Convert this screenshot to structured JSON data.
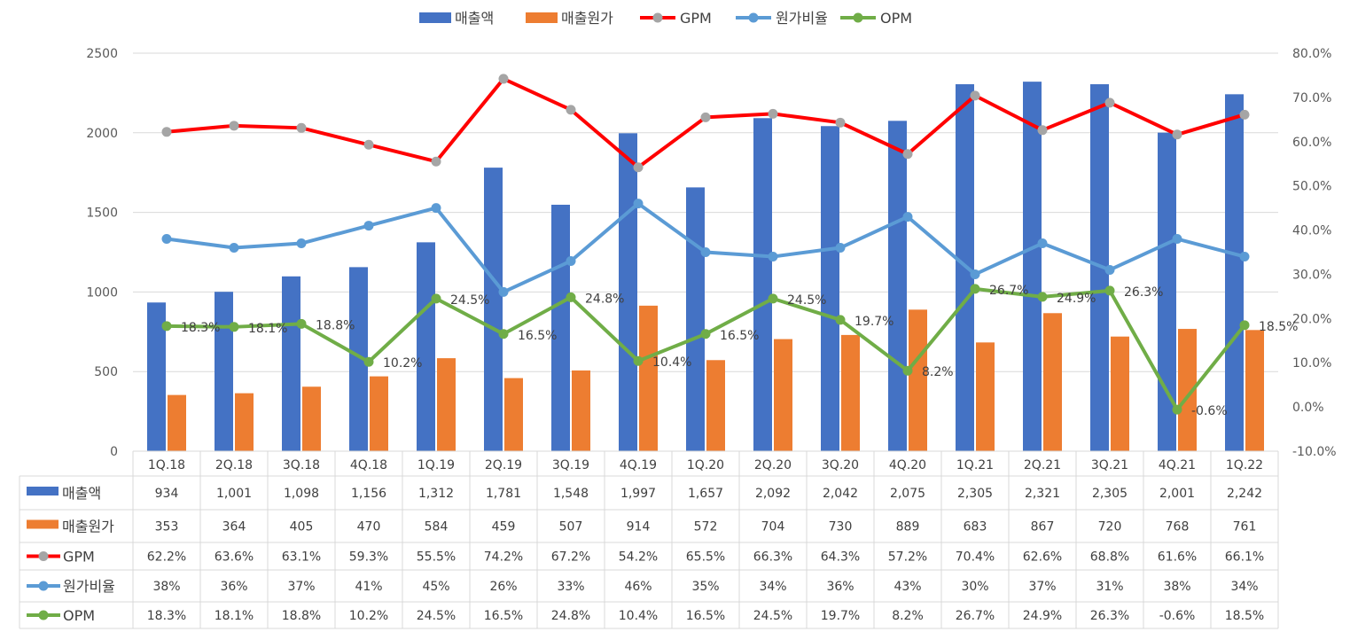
{
  "chart_data": {
    "type": "bar",
    "categories": [
      "1Q.18",
      "2Q.18",
      "3Q.18",
      "4Q.18",
      "1Q.19",
      "2Q.19",
      "3Q.19",
      "4Q.19",
      "1Q.20",
      "2Q.20",
      "3Q.20",
      "4Q.20",
      "1Q.21",
      "2Q.21",
      "3Q.21",
      "4Q.21",
      "1Q.22"
    ],
    "y_left": {
      "range": [
        0,
        2500
      ],
      "ticks": [
        "0",
        "500",
        "1000",
        "1500",
        "2000",
        "2500"
      ]
    },
    "y_right": {
      "range": [
        -10,
        80
      ],
      "ticks": [
        "-10.0%",
        "0.0%",
        "10.0%",
        "20.0%",
        "30.0%",
        "40.0%",
        "50.0%",
        "60.0%",
        "70.0%",
        "80.0%"
      ]
    },
    "grid": true,
    "legend_position": "top",
    "series": [
      {
        "name": "매출액",
        "kind": "bar",
        "axis": "left",
        "color": "#4472C4",
        "values": [
          934,
          1001,
          1098,
          1156,
          1312,
          1781,
          1548,
          1997,
          1657,
          2092,
          2042,
          2075,
          2305,
          2321,
          2305,
          2001,
          2242
        ],
        "table": [
          "934",
          "1,001",
          "1,098",
          "1,156",
          "1,312",
          "1,781",
          "1,548",
          "1,997",
          "1,657",
          "2,092",
          "2,042",
          "2,075",
          "2,305",
          "2,321",
          "2,305",
          "2,001",
          "2,242"
        ]
      },
      {
        "name": "매출원가",
        "kind": "bar",
        "axis": "left",
        "color": "#ED7D31",
        "values": [
          353,
          364,
          405,
          470,
          584,
          459,
          507,
          914,
          572,
          704,
          730,
          889,
          683,
          867,
          720,
          768,
          761
        ],
        "table": [
          "353",
          "364",
          "405",
          "470",
          "584",
          "459",
          "507",
          "914",
          "572",
          "704",
          "730",
          "889",
          "683",
          "867",
          "720",
          "768",
          "761"
        ]
      },
      {
        "name": "GPM",
        "kind": "line",
        "axis": "right",
        "color": "#FF0000",
        "marker_color": "#A5A5A5",
        "values": [
          62.2,
          63.6,
          63.1,
          59.3,
          55.5,
          74.2,
          67.2,
          54.2,
          65.5,
          66.3,
          64.3,
          57.2,
          70.4,
          62.6,
          68.8,
          61.6,
          66.1
        ],
        "table": [
          "62.2%",
          "63.6%",
          "63.1%",
          "59.3%",
          "55.5%",
          "74.2%",
          "67.2%",
          "54.2%",
          "65.5%",
          "66.3%",
          "64.3%",
          "57.2%",
          "70.4%",
          "62.6%",
          "68.8%",
          "61.6%",
          "66.1%"
        ]
      },
      {
        "name": "원가비율",
        "kind": "line",
        "axis": "right",
        "color": "#5B9BD5",
        "marker_color": "#5B9BD5",
        "values": [
          38,
          36,
          37,
          41,
          45,
          26,
          33,
          46,
          35,
          34,
          36,
          43,
          30,
          37,
          31,
          38,
          34
        ],
        "table": [
          "38%",
          "36%",
          "37%",
          "41%",
          "45%",
          "26%",
          "33%",
          "46%",
          "35%",
          "34%",
          "36%",
          "43%",
          "30%",
          "37%",
          "31%",
          "38%",
          "34%"
        ]
      },
      {
        "name": "OPM",
        "kind": "line",
        "axis": "right",
        "color": "#70AD47",
        "marker_color": "#70AD47",
        "values": [
          18.3,
          18.1,
          18.8,
          10.2,
          24.5,
          16.5,
          24.8,
          10.4,
          16.5,
          24.5,
          19.7,
          8.2,
          26.7,
          24.9,
          26.3,
          -0.6,
          18.5
        ],
        "table": [
          "18.3%",
          "18.1%",
          "18.8%",
          "10.2%",
          "24.5%",
          "16.5%",
          "24.8%",
          "10.4%",
          "16.5%",
          "24.5%",
          "19.7%",
          "8.2%",
          "26.7%",
          "24.9%",
          "26.3%",
          "-0.6%",
          "18.5%"
        ],
        "data_labels": [
          "18.3%",
          "18.1%",
          "18.8%",
          "10.2%",
          "24.5%",
          "16.5%",
          "24.8%",
          "10.4%",
          "16.5%",
          "24.5%",
          "19.7%",
          "8.2%",
          "26.7%",
          "24.9%",
          "26.3%",
          "-0.6%",
          "18.5%"
        ]
      }
    ]
  }
}
